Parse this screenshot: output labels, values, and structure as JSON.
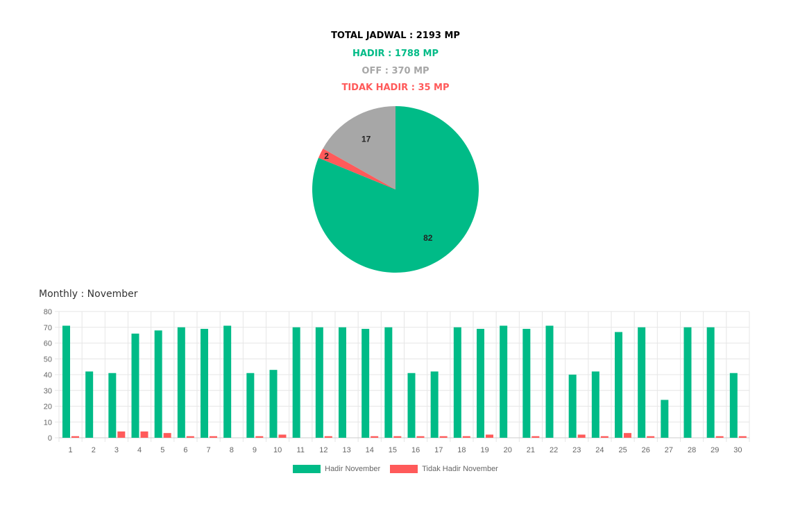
{
  "summary": {
    "total_label": "TOTAL JADWAL : 2193 MP",
    "hadir_label": "HADIR : 1788 MP",
    "off_label": "OFF : 370 MP",
    "tidak_hadir_label": "TIDAK HADIR : 35 MP"
  },
  "colors": {
    "hadir": "#00bb87",
    "off": "#a7a7a7",
    "tidak_hadir": "#ff5a5a",
    "total": "#000000",
    "grid": "#e6e6e6",
    "tick": "#666666"
  },
  "monthly_title": "Monthly : November",
  "chart_data": [
    {
      "type": "pie",
      "title": "",
      "slices": [
        {
          "label": "HADIR",
          "value": 82
        },
        {
          "label": "TIDAK HADIR",
          "value": 2
        },
        {
          "label": "OFF",
          "value": 17
        }
      ]
    },
    {
      "type": "bar",
      "title": "Monthly : November",
      "categories": [
        "1",
        "2",
        "3",
        "4",
        "5",
        "6",
        "7",
        "8",
        "9",
        "10",
        "11",
        "12",
        "13",
        "14",
        "15",
        "16",
        "17",
        "18",
        "19",
        "20",
        "21",
        "22",
        "23",
        "24",
        "25",
        "26",
        "27",
        "28",
        "29",
        "30"
      ],
      "series": [
        {
          "name": "Hadir November",
          "values": [
            71,
            42,
            41,
            66,
            68,
            70,
            69,
            71,
            41,
            43,
            70,
            70,
            70,
            69,
            70,
            41,
            42,
            70,
            69,
            71,
            69,
            71,
            40,
            42,
            67,
            70,
            24,
            70,
            70,
            41
          ]
        },
        {
          "name": "Tidak Hadir November",
          "values": [
            1,
            0,
            4,
            4,
            3,
            1,
            1,
            0,
            1,
            2,
            0,
            1,
            0,
            1,
            1,
            1,
            1,
            1,
            2,
            0,
            1,
            0,
            2,
            1,
            3,
            1,
            0,
            0,
            1,
            1
          ]
        }
      ],
      "ylim": [
        0,
        80
      ],
      "yticks": [
        0,
        10,
        20,
        30,
        40,
        50,
        60,
        70,
        80
      ],
      "grid": true,
      "legend": "bottom"
    }
  ]
}
